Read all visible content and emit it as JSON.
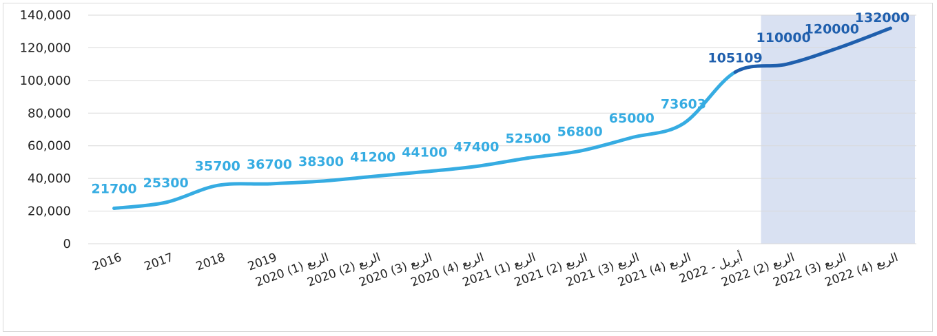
{
  "colors": {
    "actual": "#36ace2",
    "forecast": "#1f5fad",
    "forecast_band": "#d9e1f2",
    "grid": "#d9d9d9"
  },
  "chart_data": {
    "type": "line",
    "categories": [
      "2016",
      "2017",
      "2018",
      "2019",
      "2020 الربع (1)",
      "2020 الربع (2)",
      "2020 الربع (3)",
      "2020 الربع (4)",
      "2021 الربع (1)",
      "2021 الربع (2)",
      "2021 الربع (3)",
      "2021 الربع (4)",
      "أبريل - 2022",
      "2022 الربع (2)",
      "2022 الربع (3)",
      "2022 الربع (4)"
    ],
    "values": [
      21700,
      25300,
      35700,
      36700,
      38300,
      41200,
      44100,
      47400,
      52500,
      56800,
      65000,
      73603,
      105109,
      110000,
      120000,
      132000
    ],
    "data_labels": [
      "21700",
      "25300",
      "35700",
      "36700",
      "38300",
      "41200",
      "44100",
      "47400",
      "52500",
      "56800",
      "65000",
      "73603",
      "105109",
      "110000",
      "120000",
      "132000"
    ],
    "forecast_start_index": 12,
    "ylim": [
      0,
      140000
    ],
    "yticks": [
      0,
      20000,
      40000,
      60000,
      80000,
      100000,
      120000,
      140000
    ],
    "ytick_labels": [
      "0",
      "20,000",
      "40,000",
      "60,000",
      "80,000",
      "100,000",
      "120,000",
      "140,000"
    ],
    "grid": true,
    "legend": "none",
    "title": "",
    "xlabel": "",
    "ylabel": ""
  }
}
